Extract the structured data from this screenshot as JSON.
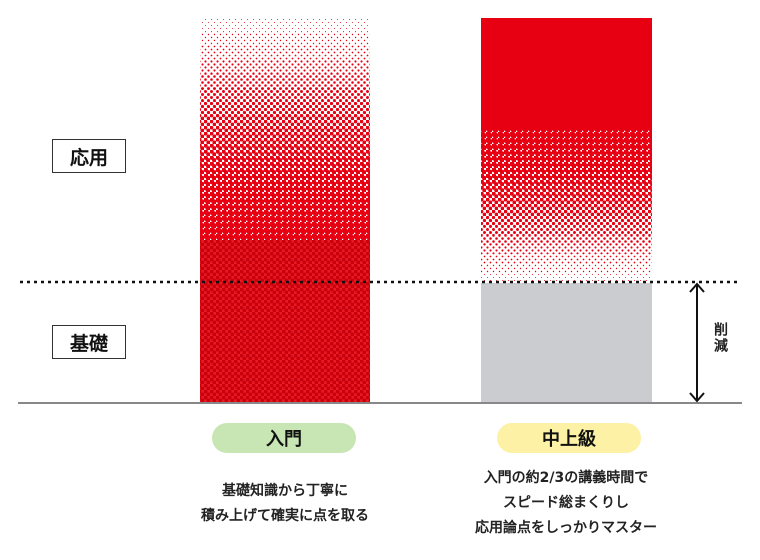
{
  "side_labels": [
    "応用",
    "基礎"
  ],
  "reduction_label": "削減",
  "courses": [
    {
      "name": "入門",
      "description": [
        "基礎知識から丁寧に",
        "積み上げて確実に点を取る"
      ]
    },
    {
      "name": "中上級",
      "description": [
        "入門の約2/3の講義時間で",
        "スピード総まくりし",
        "応用論点をしっかりマスター"
      ]
    }
  ]
}
